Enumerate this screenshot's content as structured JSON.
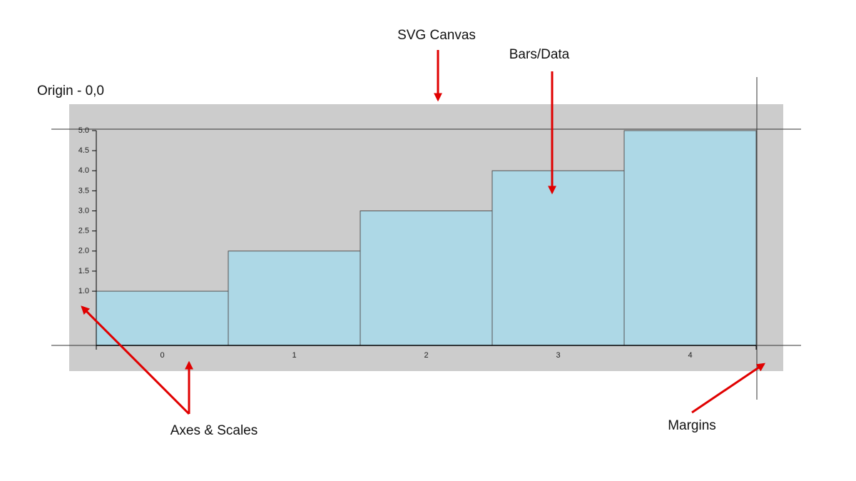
{
  "chart_data": {
    "type": "bar",
    "categories": [
      "0",
      "1",
      "2",
      "3",
      "4"
    ],
    "values": [
      1,
      2,
      3,
      4,
      5
    ],
    "color": "#add8e6",
    "ylim": [
      -0.35,
      5
    ],
    "yticks": [
      {
        "value": 1,
        "label": "1.0"
      },
      {
        "value": 1.5,
        "label": "1.5"
      },
      {
        "value": 2,
        "label": "2.0"
      },
      {
        "value": 2.5,
        "label": "2.5"
      },
      {
        "value": 3,
        "label": "3.0"
      },
      {
        "value": 3.5,
        "label": "3.5"
      },
      {
        "value": 4,
        "label": "4.0"
      },
      {
        "value": 4.5,
        "label": "4.5"
      },
      {
        "value": 5,
        "label": "5.0"
      }
    ],
    "annotations": [
      "SVG Canvas",
      "Bars/Data",
      "Origin - 0,0",
      "Axes & Scales",
      "Margins"
    ]
  }
}
